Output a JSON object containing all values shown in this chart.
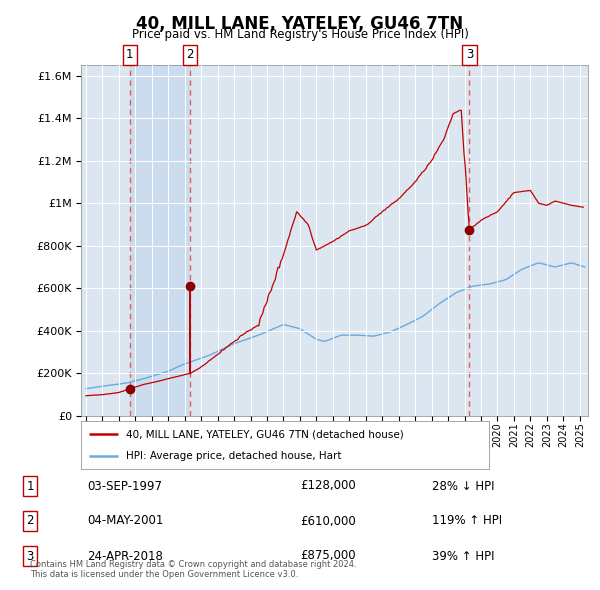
{
  "title": "40, MILL LANE, YATELEY, GU46 7TN",
  "subtitle": "Price paid vs. HM Land Registry's House Price Index (HPI)",
  "legend_line1": "40, MILL LANE, YATELEY, GU46 7TN (detached house)",
  "legend_line2": "HPI: Average price, detached house, Hart",
  "footer1": "Contains HM Land Registry data © Crown copyright and database right 2024.",
  "footer2": "This data is licensed under the Open Government Licence v3.0.",
  "table_rows": [
    [
      "1",
      "03-SEP-1997",
      "£128,000",
      "28% ↓ HPI"
    ],
    [
      "2",
      "04-MAY-2001",
      "£610,000",
      "119% ↑ HPI"
    ],
    [
      "3",
      "24-APR-2018",
      "£875,000",
      "39% ↑ HPI"
    ]
  ],
  "hpi_color": "#6aaadd",
  "price_color": "#c00000",
  "vline_color": "#e06060",
  "marker_color": "#8b0000",
  "plot_bg": "#dce6f1",
  "shade_color": "#c5d8ed",
  "ylim_max": 1650000,
  "yticks": [
    0,
    200000,
    400000,
    600000,
    800000,
    1000000,
    1200000,
    1400000,
    1600000
  ],
  "xlim_start": 1994.7,
  "xlim_end": 2025.5,
  "trans_years": [
    1997.67,
    2001.33,
    2018.3
  ],
  "trans_prices": [
    128000,
    610000,
    875000
  ],
  "trans_nums": [
    "1",
    "2",
    "3"
  ]
}
